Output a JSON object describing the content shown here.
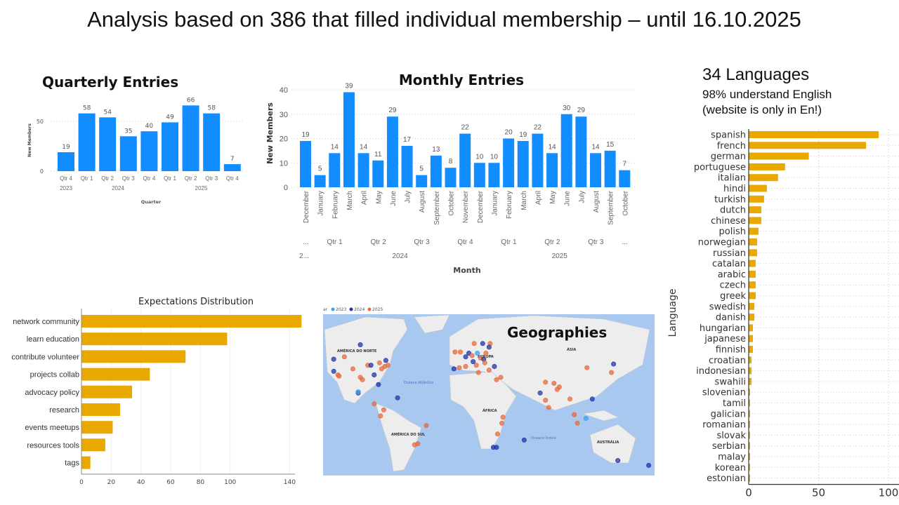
{
  "slide": {
    "title": "Analysis based on 386 that filled individual membership – until 16.10.2025",
    "languages_heading": "34 Languages",
    "languages_note1": "98% understand English",
    "languages_note2": "(website is only in En!)"
  },
  "colors": {
    "powerbi_blue": "#118DFF",
    "gold": "#E8A800",
    "map_water": "#A9C8F0",
    "map_land": "#EDEDED",
    "dot_2023": "#3AA0F0",
    "dot_2024": "#2433A8",
    "dot_2025": "#E8693A"
  },
  "chart_data": [
    {
      "id": "quarterly",
      "type": "bar",
      "title": "Quarterly Entries",
      "xlabel": "Quarter",
      "ylabel": "New Members",
      "ylim": [
        0,
        70
      ],
      "yticks": [
        0,
        50
      ],
      "categories": [
        "Qtr 4",
        "Qtr 1",
        "Qtr 2",
        "Qtr 3",
        "Qtr 4",
        "Qtr 1",
        "Qtr 2",
        "Qtr 3",
        "Qtr 4"
      ],
      "groups": [
        {
          "label": "2023",
          "span": 1
        },
        {
          "label": "2024",
          "span": 4
        },
        {
          "label": "2025",
          "span": 4
        }
      ],
      "values": [
        19,
        58,
        54,
        35,
        40,
        49,
        66,
        58,
        7
      ]
    },
    {
      "id": "monthly",
      "type": "bar",
      "title": "Monthly Entries",
      "xlabel": "Month",
      "ylabel": "New Members",
      "ylim": [
        0,
        40
      ],
      "yticks": [
        0,
        10,
        20,
        30,
        40
      ],
      "categories": [
        "December",
        "January",
        "February",
        "March",
        "April",
        "May",
        "June",
        "July",
        "August",
        "September",
        "October",
        "November",
        "December",
        "January",
        "February",
        "March",
        "April",
        "May",
        "June",
        "July",
        "August",
        "September",
        "October"
      ],
      "quarters": [
        {
          "label": "...",
          "span": 1
        },
        {
          "label": "Qtr 1",
          "span": 3
        },
        {
          "label": "Qtr 2",
          "span": 3
        },
        {
          "label": "Qtr 3",
          "span": 3
        },
        {
          "label": "Qtr 4",
          "span": 3
        },
        {
          "label": "Qtr 1",
          "span": 3
        },
        {
          "label": "Qtr 2",
          "span": 3
        },
        {
          "label": "Qtr 3",
          "span": 3
        },
        {
          "label": "...",
          "span": 1
        }
      ],
      "years": [
        {
          "label": "2...",
          "span": 1
        },
        {
          "label": "2024",
          "span": 12
        },
        {
          "label": "2025",
          "span": 10
        }
      ],
      "values": [
        19,
        5,
        14,
        39,
        14,
        11,
        29,
        17,
        5,
        13,
        8,
        22,
        10,
        10,
        20,
        19,
        22,
        14,
        30,
        29,
        14,
        15,
        7
      ]
    },
    {
      "id": "languages",
      "type": "bar",
      "orientation": "horizontal",
      "ylabel": "Language",
      "xlim": [
        0,
        105
      ],
      "xticks": [
        0,
        50,
        100
      ],
      "grid": true,
      "categories": [
        "spanish",
        "french",
        "german",
        "portuguese",
        "italian",
        "hindi",
        "turkish",
        "dutch",
        "chinese",
        "polish",
        "norwegian",
        "russian",
        "catalan",
        "arabic",
        "czech",
        "greek",
        "swedish",
        "danish",
        "hungarian",
        "japanese",
        "finnish",
        "croatian",
        "indonesian",
        "swahili",
        "slovenian",
        "tamil",
        "galician",
        "romanian",
        "slovak",
        "serbian",
        "malay",
        "korean",
        "estonian"
      ],
      "values": [
        93,
        84,
        43,
        26,
        21,
        13,
        11,
        9,
        9,
        7,
        6,
        6,
        5,
        5,
        5,
        5,
        4,
        4,
        3,
        3,
        3,
        2,
        2,
        2,
        1,
        1,
        1,
        1,
        1,
        1,
        1,
        1,
        1
      ]
    },
    {
      "id": "expectations",
      "type": "bar",
      "orientation": "horizontal",
      "title": "Expectations Distribution",
      "xlim": [
        0,
        150
      ],
      "xticks": [
        0,
        20,
        40,
        60,
        80,
        100,
        140
      ],
      "grid": true,
      "categories": [
        "network community",
        "learn education",
        "contribute volunteer",
        "projects collab",
        "advocacy policy",
        "research",
        "events meetups",
        "resources tools",
        "tags"
      ],
      "values": [
        148,
        98,
        70,
        46,
        34,
        26,
        21,
        16,
        6
      ]
    },
    {
      "id": "geographies",
      "type": "scatter",
      "title": "Geographies",
      "legend_prefix": "ar",
      "legend": [
        "2023",
        "2024",
        "2025"
      ],
      "region_labels": [
        "AMÉRICA DO NORTE",
        "EUROPA",
        "ÁSIA",
        "ÁFRICA",
        "AMÉRICA DO SUL",
        "AUSTRÁLIA",
        "Oceano Atlântico",
        "Oceano Índico"
      ],
      "points": [
        {
          "lon": -122,
          "lat": 47,
          "year": "2024"
        },
        {
          "lon": -122,
          "lat": 37,
          "year": "2024"
        },
        {
          "lon": -118,
          "lat": 34,
          "year": "2025"
        },
        {
          "lon": -117,
          "lat": 33,
          "year": "2025"
        },
        {
          "lon": -104,
          "lat": 39,
          "year": "2025"
        },
        {
          "lon": -97,
          "lat": 32,
          "year": "2025"
        },
        {
          "lon": -95,
          "lat": 30,
          "year": "2025"
        },
        {
          "lon": -90,
          "lat": 42,
          "year": "2025"
        },
        {
          "lon": -87,
          "lat": 42,
          "year": "2024"
        },
        {
          "lon": -84,
          "lat": 34,
          "year": "2024"
        },
        {
          "lon": -80,
          "lat": 26,
          "year": "2024"
        },
        {
          "lon": -77,
          "lat": 39,
          "year": "2025"
        },
        {
          "lon": -74,
          "lat": 41,
          "year": "2025"
        },
        {
          "lon": -71,
          "lat": 42,
          "year": "2025"
        },
        {
          "lon": -79,
          "lat": 44,
          "year": "2025"
        },
        {
          "lon": -73,
          "lat": 46,
          "year": "2024"
        },
        {
          "lon": -99,
          "lat": 19,
          "year": "2024"
        },
        {
          "lon": -99,
          "lat": 20,
          "year": "2023"
        },
        {
          "lon": -84,
          "lat": 10,
          "year": "2025"
        },
        {
          "lon": -75,
          "lat": 5,
          "year": "2025"
        },
        {
          "lon": -78,
          "lat": 0,
          "year": "2025"
        },
        {
          "lon": -35,
          "lat": -8,
          "year": "2025"
        },
        {
          "lon": -43,
          "lat": -23,
          "year": "2025"
        },
        {
          "lon": -46,
          "lat": -24,
          "year": "2025"
        },
        {
          "lon": -97,
          "lat": 59,
          "year": "2024"
        },
        {
          "lon": -112,
          "lat": 49,
          "year": "2025"
        },
        {
          "lon": -62,
          "lat": 15,
          "year": "2024"
        },
        {
          "lon": -9,
          "lat": 39,
          "year": "2024"
        },
        {
          "lon": -4,
          "lat": 40,
          "year": "2025"
        },
        {
          "lon": 2,
          "lat": 41,
          "year": "2025"
        },
        {
          "lon": 2,
          "lat": 49,
          "year": "2024"
        },
        {
          "lon": -3,
          "lat": 53,
          "year": "2025"
        },
        {
          "lon": -8,
          "lat": 53,
          "year": "2025"
        },
        {
          "lon": 5,
          "lat": 52,
          "year": "2024"
        },
        {
          "lon": 8,
          "lat": 50,
          "year": "2025"
        },
        {
          "lon": 13,
          "lat": 52,
          "year": "2023"
        },
        {
          "lon": 12,
          "lat": 42,
          "year": "2025"
        },
        {
          "lon": 9,
          "lat": 45,
          "year": "2024"
        },
        {
          "lon": 16,
          "lat": 48,
          "year": "2025"
        },
        {
          "lon": 19,
          "lat": 47,
          "year": "2024"
        },
        {
          "lon": 21,
          "lat": 52,
          "year": "2025"
        },
        {
          "lon": 24,
          "lat": 38,
          "year": "2025"
        },
        {
          "lon": 18,
          "lat": 60,
          "year": "2024"
        },
        {
          "lon": 10,
          "lat": 60,
          "year": "2025"
        },
        {
          "lon": 25,
          "lat": 60,
          "year": "2025"
        },
        {
          "lon": 24,
          "lat": 57,
          "year": "2024"
        },
        {
          "lon": 29,
          "lat": 41,
          "year": "2024"
        },
        {
          "lon": 35,
          "lat": 32,
          "year": "2025"
        },
        {
          "lon": 31,
          "lat": 30,
          "year": "2025"
        },
        {
          "lon": 14,
          "lat": 36,
          "year": "2025"
        },
        {
          "lon": 20,
          "lat": 44,
          "year": "2025"
        },
        {
          "lon": 72,
          "lat": 19,
          "year": "2024"
        },
        {
          "lon": 77,
          "lat": 13,
          "year": "2025"
        },
        {
          "lon": 77,
          "lat": 28,
          "year": "2025"
        },
        {
          "lon": 88,
          "lat": 22,
          "year": "2025"
        },
        {
          "lon": 80,
          "lat": 7,
          "year": "2025"
        },
        {
          "lon": 85,
          "lat": 27,
          "year": "2025"
        },
        {
          "lon": 90,
          "lat": 24,
          "year": "2025"
        },
        {
          "lon": 100,
          "lat": 14,
          "year": "2025"
        },
        {
          "lon": 104,
          "lat": 1,
          "year": "2025"
        },
        {
          "lon": 107,
          "lat": -6,
          "year": "2025"
        },
        {
          "lon": 116,
          "lat": 40,
          "year": "2025"
        },
        {
          "lon": 139,
          "lat": 36,
          "year": "2025"
        },
        {
          "lon": 141,
          "lat": 43,
          "year": "2024"
        },
        {
          "lon": 121,
          "lat": 14,
          "year": "2024"
        },
        {
          "lon": 115,
          "lat": -2,
          "year": "2023"
        },
        {
          "lon": 37,
          "lat": -1,
          "year": "2025"
        },
        {
          "lon": 36,
          "lat": -6,
          "year": "2025"
        },
        {
          "lon": 32,
          "lat": -15,
          "year": "2025"
        },
        {
          "lon": 28,
          "lat": -26,
          "year": "2024"
        },
        {
          "lon": 31,
          "lat": -26,
          "year": "2024"
        },
        {
          "lon": 57,
          "lat": -20,
          "year": "2024"
        },
        {
          "lon": 145,
          "lat": -37,
          "year": "2024"
        },
        {
          "lon": 174,
          "lat": -41,
          "year": "2024"
        }
      ]
    }
  ]
}
